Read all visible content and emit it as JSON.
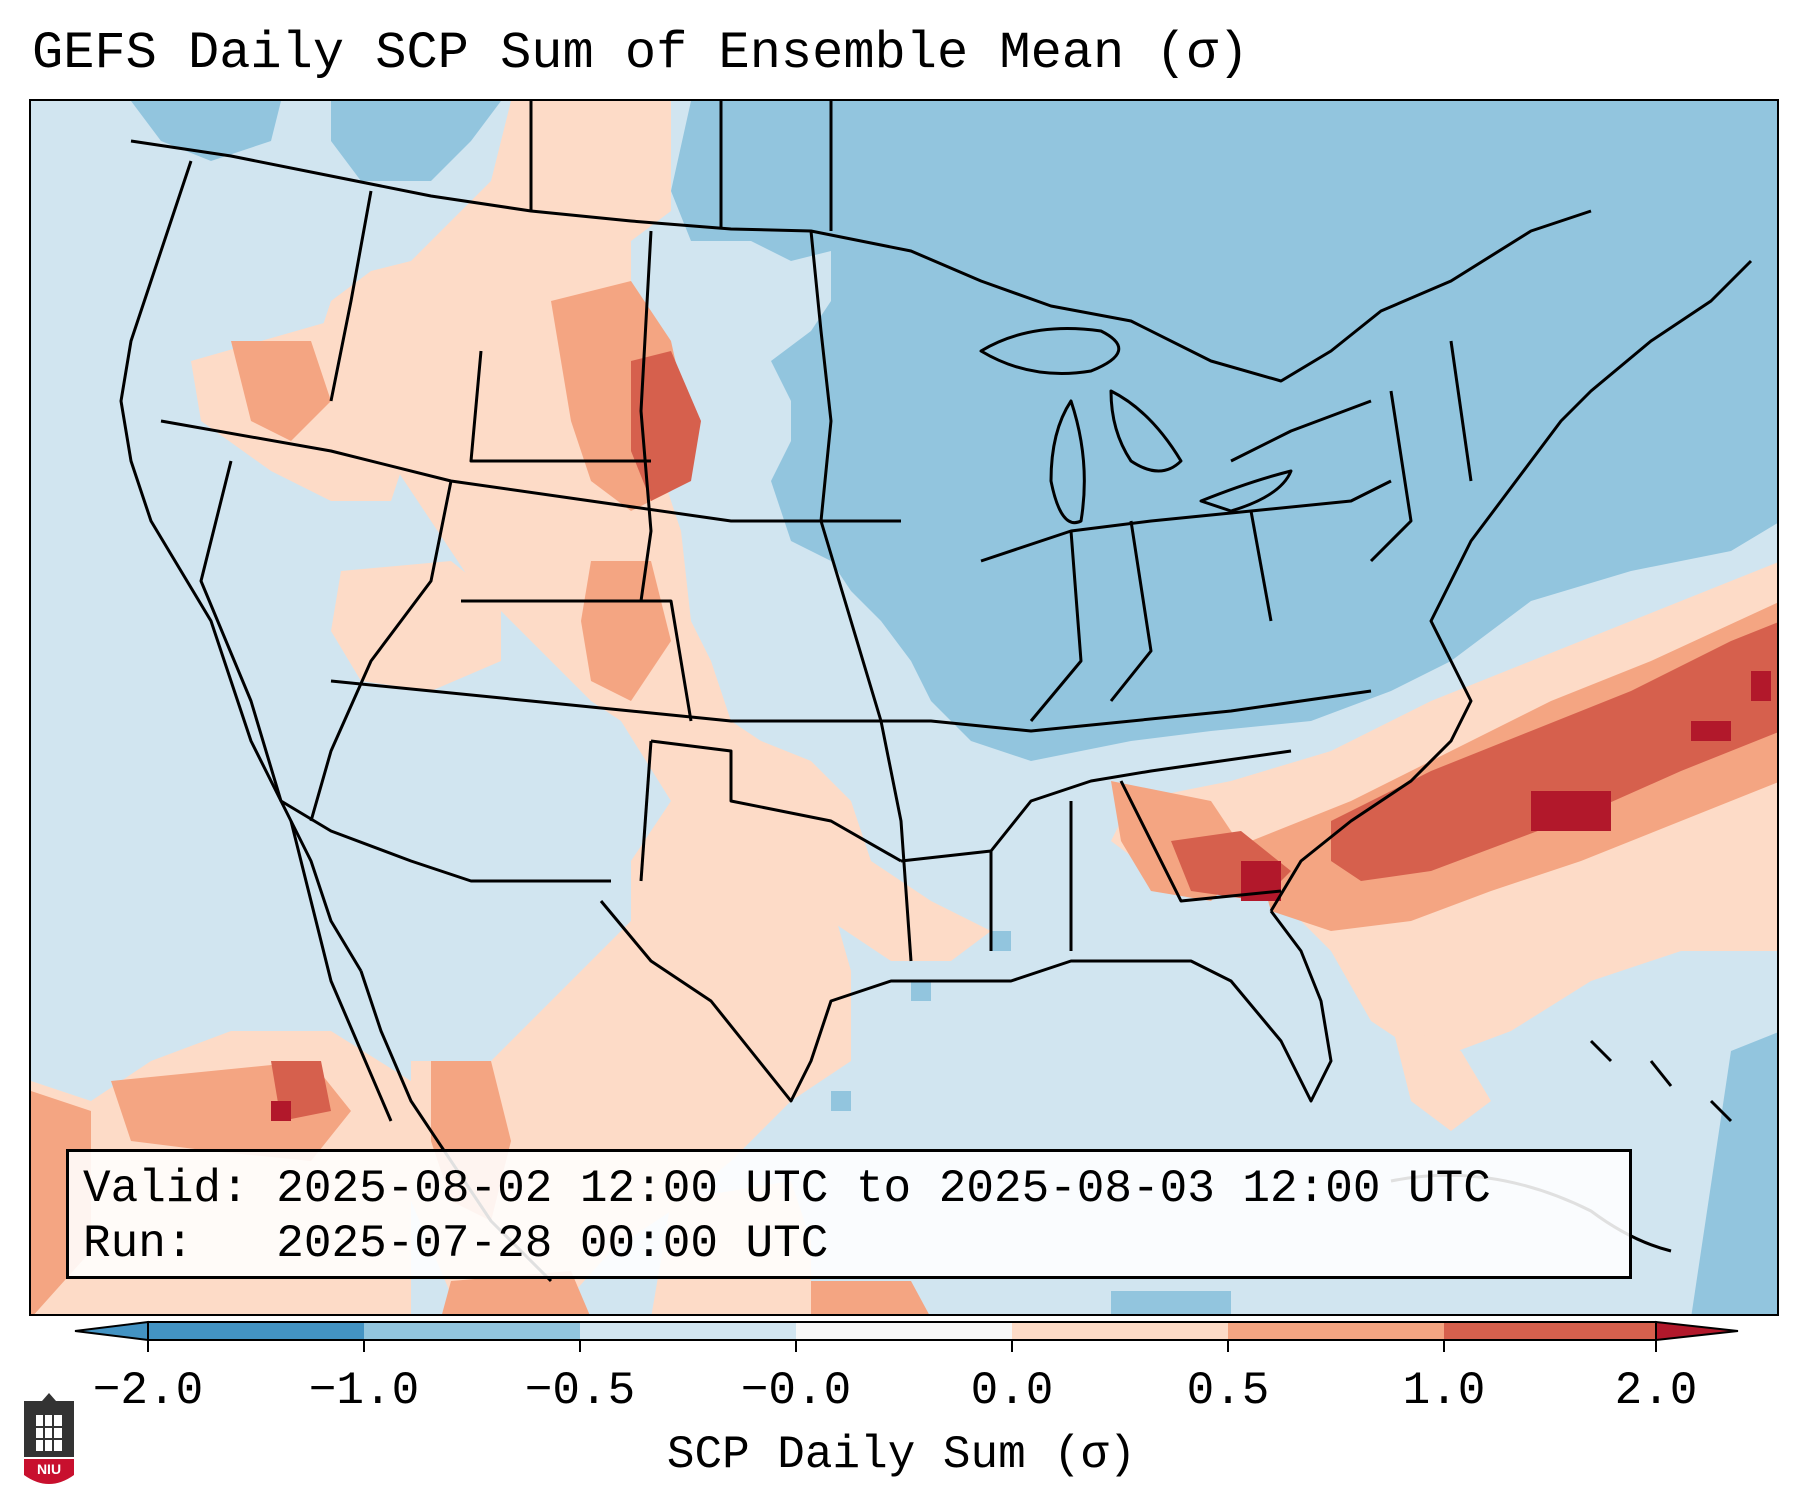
{
  "title": "GEFS Daily SCP Sum of Ensemble Mean (σ)",
  "info": {
    "valid_label": "Valid:",
    "valid_value": "2025-08-02 12:00 UTC to 2025-08-03 12:00 UTC",
    "run_label": "Run:",
    "run_value": "2025-07-28 00:00 UTC"
  },
  "colorbar": {
    "title": "SCP Daily Sum (σ)",
    "ticks": [
      "−2.0",
      "−1.0",
      "−0.5",
      "−0.0",
      "0.0",
      "0.5",
      "1.0",
      "2.0"
    ],
    "colors": [
      "#4393c3",
      "#92c5de",
      "#d1e5f0",
      "#f7f7f7",
      "#fddbc7",
      "#f4a582",
      "#d6604d",
      "#b2182b"
    ]
  },
  "logo": {
    "text": "NIU"
  }
}
